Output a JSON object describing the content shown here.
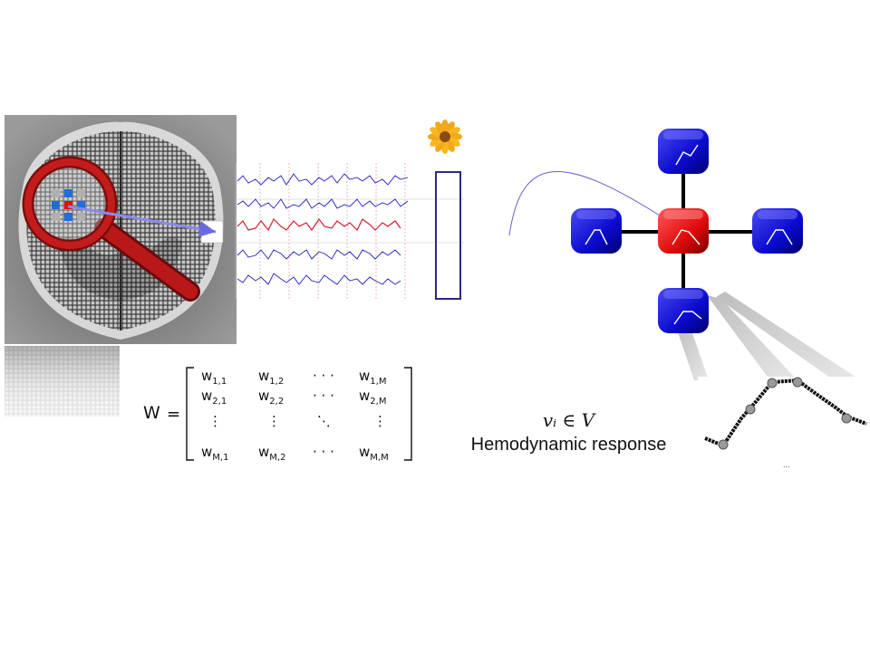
{
  "matrix": {
    "lhs": "W",
    "rows": [
      {
        "c1": "w",
        "c1_sub": "1,1",
        "c2": "w",
        "c2_sub": "1,2",
        "c3": "· · ·",
        "c4": "w",
        "c4_sub": "1,M"
      },
      {
        "c1": "w",
        "c1_sub": "2,1",
        "c2": "w",
        "c2_sub": "2,2",
        "c3": "· · ·",
        "c4": "w",
        "c4_sub": "2,M"
      },
      {
        "c1": "⋮",
        "c2": "⋮",
        "c3": "⋱",
        "c4": "⋮"
      },
      {
        "c1": "w",
        "c1_sub": "M,1",
        "c2": "w",
        "c2_sub": "M,2",
        "c3": "· · ·",
        "c4": "w",
        "c4_sub": "M,M"
      }
    ]
  },
  "vertex_label": "vᵢ ∈ V",
  "hemodynamic_label": "Hemodynamic response",
  "ellipsis_label": "...",
  "colors": {
    "selected_voxel": "#e01010",
    "neighbor_voxel": "#1a1acc",
    "signal_blue": "#2020c0",
    "signal_red": "#d02030",
    "magnifier": "#b81818",
    "highlight_box": "#2a2a7a"
  }
}
